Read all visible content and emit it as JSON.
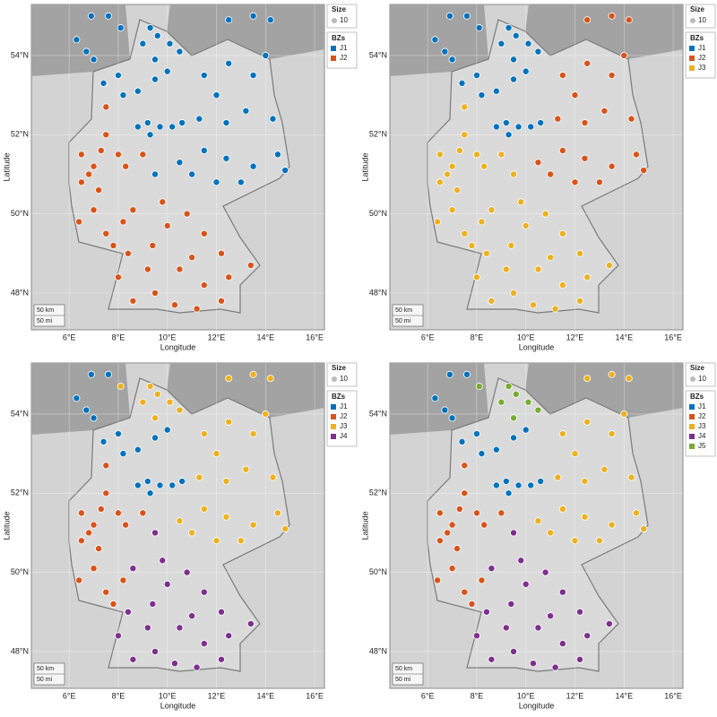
{
  "points": {
    "lon": [
      6.9,
      7.6,
      6.3,
      6.7,
      7.0,
      8.1,
      9.3,
      12.5,
      13.5,
      14.2,
      9.0,
      9.6,
      10.1,
      9.5,
      10.5,
      7.4,
      8.0,
      8.2,
      8.8,
      9.5,
      10.0,
      7.5,
      8.8,
      9.2,
      9.7,
      10.2,
      10.6,
      9.3,
      11.5,
      12.5,
      13.5,
      14.0,
      12.0,
      13.2,
      14.3,
      11.3,
      12.4,
      11.5,
      12.4,
      13.5,
      14.5,
      12.0,
      13.0,
      11.0,
      10.5,
      14.8,
      6.5,
      7.0,
      7.3,
      6.8,
      7.5,
      8.0,
      6.5,
      7.2,
      8.3,
      9.0,
      9.5,
      6.4,
      7.0,
      7.5,
      8.2,
      8.6,
      8.4,
      8.0,
      8.6,
      9.2,
      9.5,
      7.8,
      10.0,
      10.8,
      11.5,
      12.2,
      10.5,
      11.5,
      12.5,
      13.4,
      10.3,
      11.2,
      12.2,
      9.8,
      11.0,
      9.4
    ],
    "lat": [
      55.0,
      55.0,
      54.4,
      54.1,
      53.9,
      54.7,
      54.7,
      54.9,
      55.0,
      54.9,
      54.3,
      54.5,
      54.3,
      53.9,
      54.1,
      53.3,
      53.5,
      53.0,
      53.1,
      53.4,
      53.6,
      52.7,
      52.2,
      52.3,
      52.2,
      52.2,
      52.3,
      52.0,
      53.5,
      53.8,
      53.5,
      54.0,
      53.0,
      52.6,
      52.4,
      52.4,
      52.3,
      51.6,
      51.4,
      51.2,
      51.5,
      50.8,
      50.8,
      51.0,
      51.3,
      51.1,
      51.5,
      51.2,
      51.6,
      51.0,
      52.0,
      51.5,
      50.8,
      50.6,
      51.2,
      51.5,
      51.0,
      49.8,
      50.1,
      49.5,
      49.8,
      50.1,
      49.0,
      48.4,
      47.8,
      48.6,
      48.0,
      49.2,
      49.7,
      50.0,
      49.5,
      49.0,
      48.6,
      48.2,
      48.4,
      48.7,
      47.7,
      47.6,
      47.8,
      50.3,
      48.9,
      49.2
    ]
  },
  "axes": {
    "x_label": "Longitude",
    "y_label": "Latitude",
    "xlim": [
      4.46,
      16.4
    ],
    "ylim": [
      47.07,
      55.29
    ],
    "xticks": [
      {
        "value": 6,
        "label": "6°E"
      },
      {
        "value": 8,
        "label": "8°E"
      },
      {
        "value": 10,
        "label": "10°E"
      },
      {
        "value": 12,
        "label": "12°E"
      },
      {
        "value": 14,
        "label": "14°E"
      },
      {
        "value": 16,
        "label": "16°E"
      }
    ],
    "yticks": [
      {
        "value": 48,
        "label": "48°N"
      },
      {
        "value": 50,
        "label": "50°N"
      },
      {
        "value": 52,
        "label": "52°N"
      },
      {
        "value": 54,
        "label": "54°N"
      }
    ]
  },
  "scale_bar": [
    "50 km",
    "50 mi"
  ],
  "legend": {
    "size_title": "Size",
    "size_value": 10,
    "zone_title": "BZs"
  },
  "panels": [
    {
      "zones": [
        {
          "name": "J1",
          "color": "#0072bd"
        },
        {
          "name": "J2",
          "color": "#d95319"
        }
      ],
      "assignment": [
        0,
        0,
        0,
        0,
        0,
        0,
        0,
        0,
        0,
        0,
        0,
        0,
        0,
        0,
        0,
        0,
        0,
        0,
        0,
        0,
        0,
        1,
        0,
        0,
        0,
        0,
        0,
        0,
        0,
        0,
        0,
        0,
        0,
        0,
        0,
        0,
        0,
        0,
        0,
        0,
        0,
        0,
        0,
        0,
        0,
        0,
        1,
        1,
        1,
        1,
        1,
        1,
        1,
        1,
        1,
        1,
        0,
        1,
        1,
        1,
        1,
        1,
        1,
        1,
        1,
        1,
        1,
        1,
        1,
        1,
        1,
        1,
        1,
        1,
        1,
        1,
        1,
        1,
        1,
        1,
        1,
        1
      ]
    },
    {
      "zones": [
        {
          "name": "J1",
          "color": "#0072bd"
        },
        {
          "name": "J2",
          "color": "#d95319"
        },
        {
          "name": "J3",
          "color": "#edb120"
        }
      ],
      "assignment": [
        0,
        0,
        0,
        0,
        0,
        0,
        0,
        1,
        1,
        1,
        0,
        0,
        0,
        0,
        0,
        0,
        0,
        0,
        0,
        0,
        0,
        2,
        0,
        0,
        0,
        0,
        0,
        0,
        1,
        1,
        1,
        1,
        1,
        1,
        1,
        1,
        1,
        1,
        1,
        1,
        1,
        1,
        1,
        1,
        1,
        1,
        2,
        2,
        2,
        2,
        2,
        2,
        2,
        2,
        2,
        2,
        2,
        2,
        2,
        2,
        2,
        2,
        2,
        2,
        2,
        2,
        2,
        2,
        2,
        2,
        2,
        2,
        2,
        2,
        2,
        2,
        2,
        2,
        2,
        2,
        2,
        2
      ]
    },
    {
      "zones": [
        {
          "name": "J1",
          "color": "#0072bd"
        },
        {
          "name": "J2",
          "color": "#d95319"
        },
        {
          "name": "J3",
          "color": "#edb120"
        },
        {
          "name": "J4",
          "color": "#7e2f8e"
        }
      ],
      "assignment": [
        0,
        0,
        0,
        0,
        0,
        2,
        2,
        2,
        2,
        2,
        2,
        2,
        2,
        2,
        2,
        0,
        0,
        0,
        0,
        0,
        0,
        1,
        0,
        0,
        0,
        0,
        0,
        0,
        2,
        2,
        2,
        2,
        2,
        2,
        2,
        2,
        2,
        2,
        2,
        2,
        2,
        2,
        2,
        2,
        2,
        2,
        1,
        1,
        1,
        1,
        1,
        1,
        1,
        1,
        1,
        1,
        3,
        1,
        1,
        1,
        1,
        3,
        3,
        3,
        3,
        3,
        3,
        1,
        3,
        3,
        3,
        3,
        3,
        3,
        3,
        3,
        3,
        3,
        3,
        3,
        3,
        3
      ]
    },
    {
      "zones": [
        {
          "name": "J1",
          "color": "#0072bd"
        },
        {
          "name": "J2",
          "color": "#d95319"
        },
        {
          "name": "J3",
          "color": "#edb120"
        },
        {
          "name": "J4",
          "color": "#7e2f8e"
        },
        {
          "name": "J5",
          "color": "#77ac30"
        }
      ],
      "assignment": [
        0,
        0,
        0,
        0,
        0,
        4,
        4,
        2,
        2,
        2,
        4,
        4,
        4,
        4,
        4,
        0,
        0,
        0,
        0,
        0,
        0,
        1,
        0,
        0,
        0,
        0,
        0,
        0,
        2,
        2,
        2,
        2,
        2,
        2,
        2,
        2,
        2,
        2,
        2,
        2,
        2,
        2,
        2,
        2,
        2,
        2,
        1,
        1,
        1,
        1,
        1,
        1,
        1,
        1,
        1,
        1,
        3,
        1,
        1,
        1,
        1,
        3,
        3,
        3,
        3,
        3,
        3,
        1,
        3,
        3,
        3,
        3,
        3,
        3,
        3,
        3,
        3,
        3,
        3,
        3,
        3,
        3
      ]
    }
  ]
}
